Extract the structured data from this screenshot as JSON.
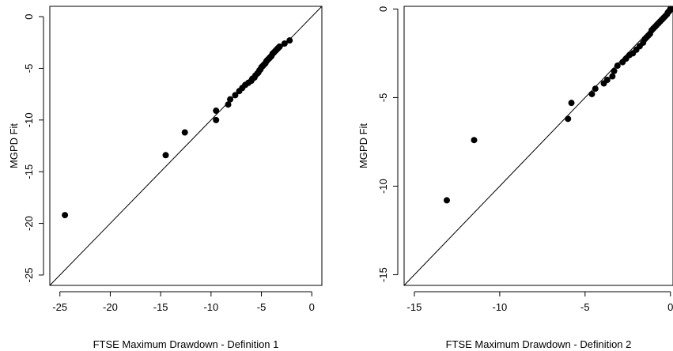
{
  "chart_data": [
    {
      "type": "scatter",
      "xlabel": "FTSE Maximum Drawdown - Definition 1",
      "ylabel": "MGPD Fit",
      "xlim": [
        -26,
        1
      ],
      "ylim": [
        -26,
        1
      ],
      "xticks": [
        -25,
        -20,
        -15,
        -10,
        -5,
        0
      ],
      "yticks": [
        0,
        -5,
        -10,
        -15,
        -20,
        -25
      ],
      "xtick_labels": [
        "-25",
        "-20",
        "-15",
        "-10",
        "-5",
        "0"
      ],
      "ytick_labels": [
        "0",
        "-5",
        "-10",
        "-15",
        "-20",
        "-25"
      ],
      "reference_line": "y = x",
      "grid": false,
      "x": [
        -24.5,
        -14.5,
        -12.6,
        -9.5,
        -9.5,
        -8.3,
        -8.1,
        -7.6,
        -7.2,
        -6.9,
        -6.6,
        -6.3,
        -6.0,
        -5.9,
        -5.7,
        -5.6,
        -5.4,
        -5.3,
        -5.2,
        -5.1,
        -5.0,
        -4.9,
        -4.8,
        -4.7,
        -4.6,
        -4.5,
        -4.4,
        -4.3,
        -4.2,
        -4.1,
        -4.0,
        -3.9,
        -3.8,
        -3.7,
        -3.6,
        -3.5,
        -3.4,
        -3.3,
        -3.2,
        -2.7,
        -2.2
      ],
      "y": [
        -19.2,
        -13.4,
        -11.2,
        -10.0,
        -9.1,
        -8.5,
        -8.0,
        -7.6,
        -7.2,
        -6.9,
        -6.6,
        -6.4,
        -6.2,
        -6.0,
        -5.9,
        -5.7,
        -5.5,
        -5.4,
        -5.2,
        -5.1,
        -4.9,
        -4.8,
        -4.7,
        -4.6,
        -4.5,
        -4.3,
        -4.2,
        -4.1,
        -4.0,
        -3.9,
        -3.8,
        -3.6,
        -3.5,
        -3.4,
        -3.3,
        -3.2,
        -3.1,
        -3.0,
        -2.9,
        -2.6,
        -2.3
      ]
    },
    {
      "type": "scatter",
      "xlabel": "FTSE Maximum Drawdown - Definition 2",
      "ylabel": "MGPD Fit",
      "xlim": [
        -15.6,
        0.15
      ],
      "ylim": [
        -15.6,
        0.15
      ],
      "xticks": [
        -15,
        -10,
        -5,
        0
      ],
      "yticks": [
        0,
        -5,
        -10,
        -15
      ],
      "xtick_labels": [
        "-15",
        "-10",
        "-5",
        "0"
      ],
      "ytick_labels": [
        "0",
        "-5",
        "-10",
        "-15"
      ],
      "reference_line": "y = x",
      "grid": false,
      "x": [
        -13.1,
        -11.5,
        -6.0,
        -5.8,
        -4.6,
        -4.4,
        -3.9,
        -3.7,
        -3.4,
        -3.3,
        -3.1,
        -2.8,
        -2.6,
        -2.4,
        -2.2,
        -2.0,
        -1.8,
        -1.6,
        -1.5,
        -1.4,
        -1.3,
        -1.2,
        -1.1,
        -1.0,
        -0.9,
        -0.8,
        -0.7,
        -0.6,
        -0.5,
        -0.4,
        -0.3,
        -0.2,
        -0.15,
        -0.1,
        -0.05,
        0.0
      ],
      "y": [
        -10.8,
        -7.4,
        -6.2,
        -5.3,
        -4.8,
        -4.5,
        -4.2,
        -4.0,
        -3.8,
        -3.5,
        -3.2,
        -3.0,
        -2.8,
        -2.6,
        -2.5,
        -2.3,
        -2.1,
        -1.9,
        -1.7,
        -1.6,
        -1.5,
        -1.4,
        -1.2,
        -1.1,
        -1.0,
        -0.9,
        -0.8,
        -0.7,
        -0.6,
        -0.5,
        -0.4,
        -0.3,
        -0.2,
        -0.15,
        -0.1,
        0.0
      ]
    }
  ]
}
